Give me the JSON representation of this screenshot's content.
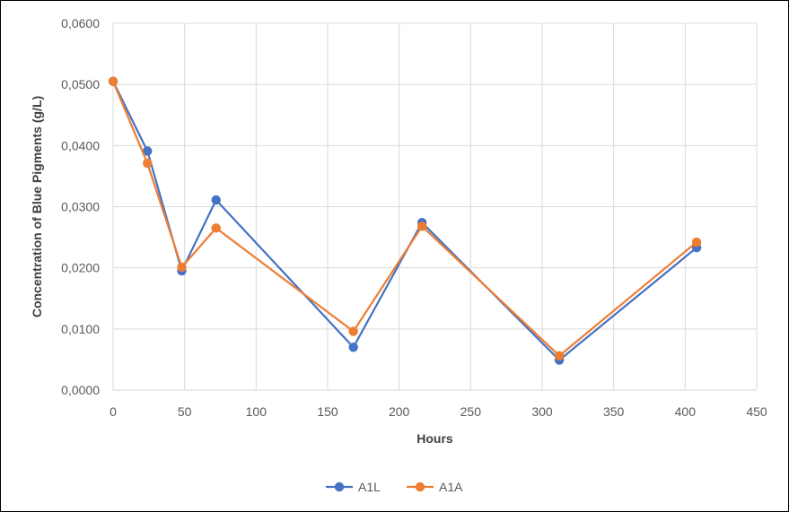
{
  "chart_data": {
    "type": "line",
    "xlabel": "Hours",
    "ylabel": "Concentration of Blue Pigments (g/L)",
    "xlim": [
      0,
      450
    ],
    "ylim": [
      0,
      0.06
    ],
    "x_ticks": [
      "0",
      "50",
      "100",
      "150",
      "200",
      "250",
      "300",
      "350",
      "400",
      "450"
    ],
    "y_ticks": [
      "0,0000",
      "0,0100",
      "0,0200",
      "0,0300",
      "0,0400",
      "0,0500",
      "0,0600"
    ],
    "grid": true,
    "legend_position": "bottom",
    "series": [
      {
        "name": "A1L",
        "color": "#4472C4",
        "x": [
          0,
          24,
          48,
          72,
          168,
          216,
          312,
          408
        ],
        "y": [
          0.0505,
          0.0391,
          0.0195,
          0.0311,
          0.007,
          0.0274,
          0.0049,
          0.0233
        ]
      },
      {
        "name": "A1A",
        "color": "#ED7D31",
        "x": [
          0,
          24,
          48,
          72,
          168,
          216,
          312,
          408
        ],
        "y": [
          0.0505,
          0.0371,
          0.0201,
          0.0265,
          0.0096,
          0.0268,
          0.0056,
          0.0242
        ]
      }
    ]
  }
}
